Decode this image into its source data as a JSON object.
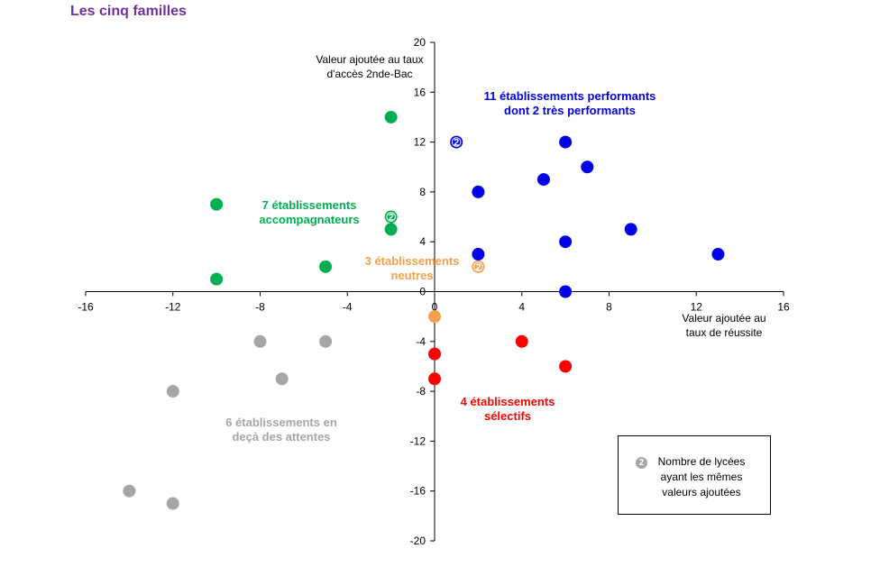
{
  "title": "Les cinq familles",
  "colors": {
    "performants": "#0000e6",
    "accompagnateurs": "#00b050",
    "neutres": "#f4a04b",
    "selectifs": "#ff0000",
    "en_deca": "#a6a6a6",
    "title": "#7030a0"
  },
  "chart_data": {
    "type": "scatter",
    "xlim": [
      -16,
      16
    ],
    "ylim": [
      -20,
      20
    ],
    "x_ticks": [
      -16,
      -12,
      -8,
      -4,
      0,
      4,
      8,
      12,
      16
    ],
    "y_ticks": [
      -20,
      -16,
      -12,
      -8,
      -4,
      0,
      4,
      8,
      12,
      16,
      20
    ],
    "x_ticks_text": [
      "-16",
      "-12",
      "-8",
      "-4",
      "0",
      "4",
      "8",
      "12",
      "16"
    ],
    "y_ticks_text": [
      "-20",
      "-16",
      "-12",
      "-8",
      "-4",
      "0",
      "4",
      "8",
      "12",
      "16",
      "20"
    ],
    "xlabel": [
      "Valeur ajoutée au",
      "taux de réussite"
    ],
    "ylabel": [
      "Valeur ajoutée au taux",
      "d'accès 2nde-Bac"
    ],
    "grid": false,
    "series": [
      {
        "key": "performants",
        "label": [
          "11 établissements performants",
          "dont 2 très performants"
        ],
        "points": [
          [
            1,
            12,
            2
          ],
          [
            2,
            8,
            1
          ],
          [
            2,
            3,
            1
          ],
          [
            5,
            9,
            1
          ],
          [
            6,
            12,
            1
          ],
          [
            6,
            4,
            1
          ],
          [
            6,
            0,
            1
          ],
          [
            7,
            10,
            1
          ],
          [
            9,
            5,
            1
          ],
          [
            13,
            3,
            1
          ]
        ]
      },
      {
        "key": "accompagnateurs",
        "label": [
          "7 établissements",
          "accompagnateurs"
        ],
        "points": [
          [
            -10,
            7,
            1
          ],
          [
            -10,
            1,
            1
          ],
          [
            -5,
            2,
            1
          ],
          [
            -2,
            14,
            1
          ],
          [
            -2,
            6,
            2
          ],
          [
            -2,
            5,
            1
          ]
        ]
      },
      {
        "key": "neutres",
        "label": [
          "3 établissements",
          "neutres"
        ],
        "points": [
          [
            0,
            -2,
            1
          ],
          [
            2,
            2,
            2
          ]
        ]
      },
      {
        "key": "selectifs",
        "label": [
          "4 établissements",
          "sélectifs"
        ],
        "points": [
          [
            0,
            -5,
            1
          ],
          [
            0,
            -7,
            1
          ],
          [
            4,
            -4,
            1
          ],
          [
            6,
            -6,
            1
          ]
        ]
      },
      {
        "key": "en_deca",
        "label": [
          "6 établissements en",
          "deçà des attentes"
        ],
        "points": [
          [
            -8,
            -4,
            1
          ],
          [
            -5,
            -4,
            1
          ],
          [
            -7,
            -7,
            1
          ],
          [
            -12,
            -8,
            1
          ],
          [
            -14,
            -16,
            1
          ],
          [
            -12,
            -17,
            1
          ]
        ]
      }
    ]
  },
  "legend": {
    "badge": "2",
    "lines": [
      "Nombre de lycées",
      "ayant les mêmes",
      "valeurs ajoutées"
    ]
  }
}
